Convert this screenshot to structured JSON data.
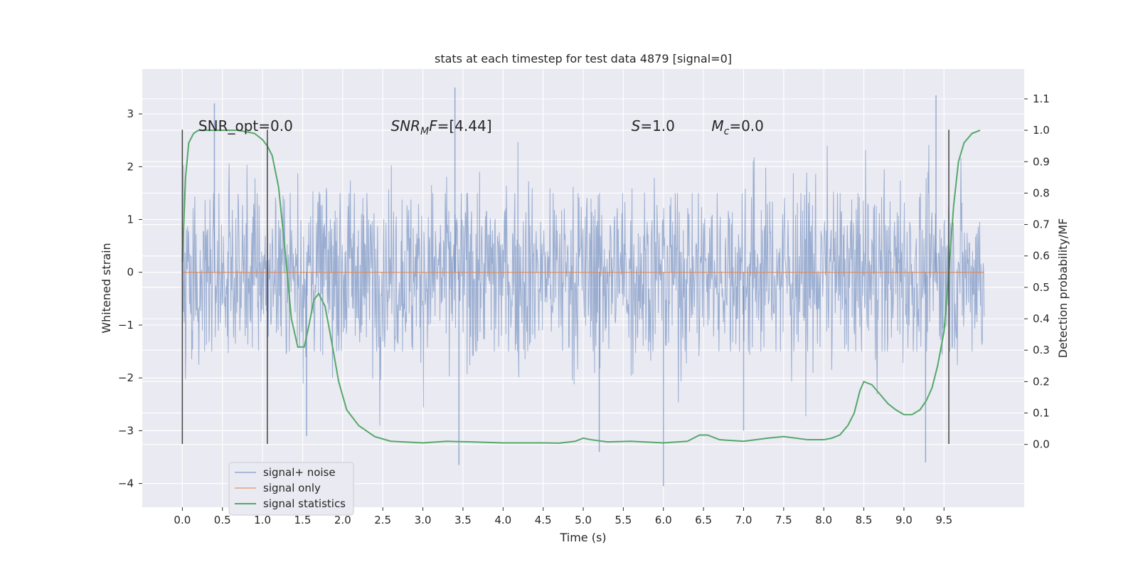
{
  "chart_data": {
    "type": "line",
    "title": "stats at each timestep for test data 4879 [signal=0]",
    "xlabel": "Time (s)",
    "ylabel": "Whitened strain",
    "ylabel_right": "Detection probability/MF",
    "xlim": [
      -0.5,
      10.5
    ],
    "ylim": [
      -4.45,
      3.85
    ],
    "ylim_right": [
      -0.2,
      1.195
    ],
    "x_ticks": [
      "0.0",
      "0.5",
      "1.0",
      "1.5",
      "2.0",
      "2.5",
      "3.0",
      "3.5",
      "4.0",
      "4.5",
      "5.0",
      "5.5",
      "6.0",
      "6.5",
      "7.0",
      "7.5",
      "8.0",
      "8.5",
      "9.0",
      "9.5"
    ],
    "y_ticks": [
      "3",
      "2",
      "1",
      "0",
      "−1",
      "−2",
      "−3",
      "−4"
    ],
    "y_ticks_right": [
      "1.1",
      "1.0",
      "0.9",
      "0.8",
      "0.7",
      "0.6",
      "0.5",
      "0.4",
      "0.3",
      "0.2",
      "0.1",
      "0.0"
    ],
    "grid": true,
    "legend_position": "lower-left",
    "annotations": [
      {
        "text": "SNR_opt=0.0",
        "x": 0.2,
        "y": 2.7
      },
      {
        "text": "SNR_MF=[4.44]",
        "x": 2.6,
        "y": 2.7
      },
      {
        "text": "S=1.0",
        "x": 5.6,
        "y": 2.7
      },
      {
        "text": "M_c=0.0",
        "x": 6.6,
        "y": 2.7
      }
    ],
    "vertical_lines": [
      {
        "x": 0.0,
        "y_from": -3.25,
        "y_to": 2.7
      },
      {
        "x": 1.06,
        "y_from": -3.25,
        "y_to": 2.7
      },
      {
        "x": 9.56,
        "y_from": -3.25,
        "y_to": 2.7
      }
    ],
    "series": [
      {
        "name": "signal+ noise",
        "color": "#4c72b0",
        "axis": "left",
        "kind": "dense noise, ~4096 samples",
        "x_range": [
          0.0,
          10.0
        ],
        "typical_range": [
          -1.5,
          1.5
        ],
        "spikes": [
          {
            "x": 0.4,
            "y": 3.2
          },
          {
            "x": 3.4,
            "y": 3.5
          },
          {
            "x": 9.4,
            "y": 3.35
          },
          {
            "x": 3.45,
            "y": -3.65
          },
          {
            "x": 6.0,
            "y": -4.05
          },
          {
            "x": 9.27,
            "y": -3.6
          },
          {
            "x": 1.55,
            "y": -3.1
          },
          {
            "x": 5.2,
            "y": -3.4
          },
          {
            "x": 7.0,
            "y": -3.0
          }
        ]
      },
      {
        "name": "signal only",
        "color": "#dd8452",
        "axis": "left",
        "x": [
          0.0,
          10.0
        ],
        "y": [
          0.0,
          0.0
        ]
      },
      {
        "name": "signal statistics",
        "color": "#55a868",
        "axis": "right",
        "x": [
          0.0,
          0.04,
          0.08,
          0.14,
          0.2,
          0.3,
          0.5,
          0.7,
          0.9,
          1.0,
          1.06,
          1.12,
          1.2,
          1.28,
          1.36,
          1.44,
          1.52,
          1.58,
          1.64,
          1.7,
          1.78,
          1.86,
          1.95,
          2.05,
          2.2,
          2.4,
          2.6,
          3.0,
          3.3,
          3.6,
          4.0,
          4.5,
          4.7,
          4.9,
          5.0,
          5.1,
          5.3,
          5.6,
          6.0,
          6.3,
          6.45,
          6.55,
          6.7,
          7.0,
          7.3,
          7.5,
          7.8,
          8.0,
          8.1,
          8.2,
          8.3,
          8.38,
          8.45,
          8.5,
          8.6,
          8.7,
          8.8,
          8.9,
          9.0,
          9.1,
          9.2,
          9.28,
          9.35,
          9.42,
          9.5,
          9.56,
          9.62,
          9.68,
          9.75,
          9.85,
          9.95
        ],
        "y": [
          0.58,
          0.85,
          0.96,
          0.99,
          1.0,
          1.0,
          1.0,
          1.0,
          0.99,
          0.97,
          0.95,
          0.92,
          0.82,
          0.62,
          0.4,
          0.31,
          0.31,
          0.38,
          0.46,
          0.48,
          0.44,
          0.33,
          0.2,
          0.11,
          0.06,
          0.025,
          0.01,
          0.005,
          0.01,
          0.008,
          0.005,
          0.005,
          0.004,
          0.01,
          0.02,
          0.015,
          0.008,
          0.01,
          0.005,
          0.01,
          0.03,
          0.03,
          0.015,
          0.01,
          0.02,
          0.025,
          0.015,
          0.015,
          0.02,
          0.03,
          0.06,
          0.1,
          0.17,
          0.2,
          0.19,
          0.16,
          0.13,
          0.11,
          0.095,
          0.095,
          0.11,
          0.14,
          0.18,
          0.25,
          0.36,
          0.55,
          0.76,
          0.9,
          0.96,
          0.99,
          1.0
        ]
      }
    ]
  }
}
